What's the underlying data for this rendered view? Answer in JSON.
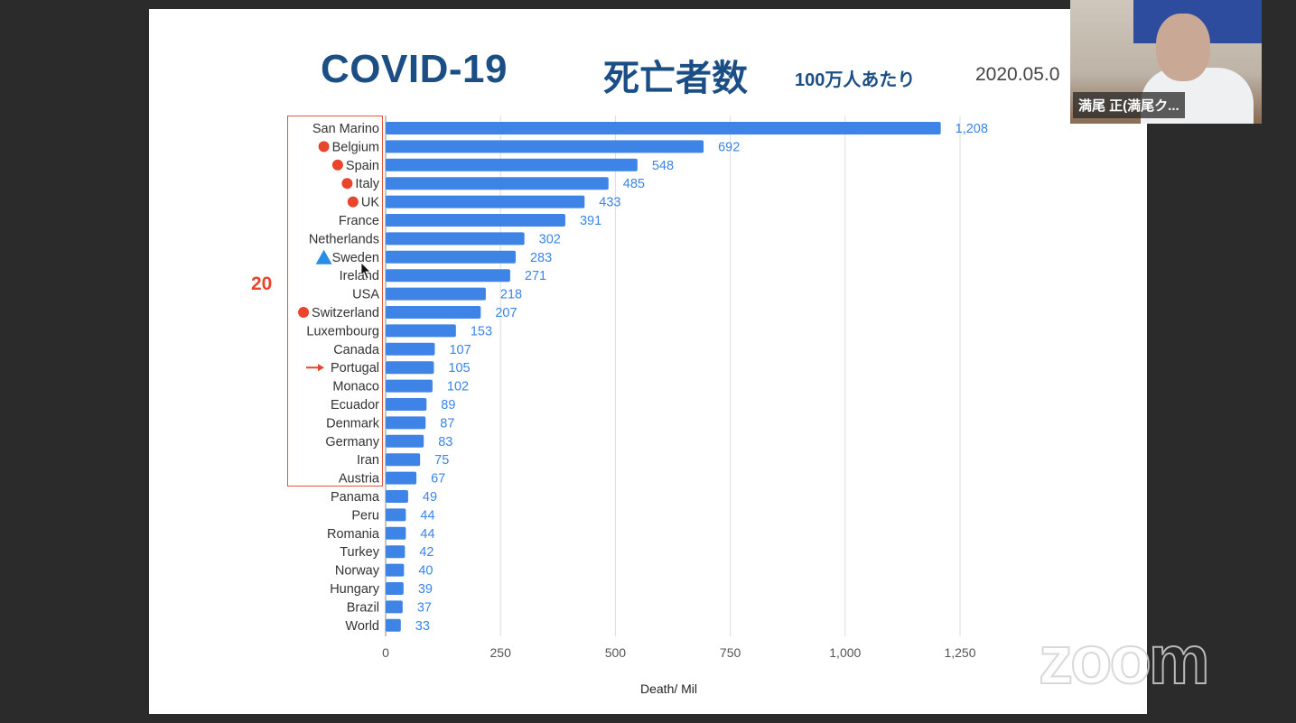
{
  "slide": {
    "title": "COVID-19",
    "title_jp": "死亡者数",
    "subtitle": "100万人あたり",
    "date": "2020.05.0",
    "highlight_count": "20"
  },
  "colors": {
    "bar": "#3d84e6",
    "title": "#1a4e85",
    "highlight": "#e8452c",
    "marker_triangle": "#2b8ce6"
  },
  "chart_data": {
    "type": "bar",
    "orientation": "horizontal",
    "xlabel": "Death/ Mil",
    "xlim": [
      0,
      1250
    ],
    "xticks": [
      "0",
      "250",
      "500",
      "750",
      "1,000",
      "1,250"
    ],
    "xtick_values": [
      0,
      250,
      500,
      750,
      1000,
      1250
    ],
    "grid": true,
    "categories": [
      "San Marino",
      "Belgium",
      "Spain",
      "Italy",
      "UK",
      "France",
      "Netherlands",
      "Sweden",
      "Ireland",
      "USA",
      "Switzerland",
      "Luxembourg",
      "Canada",
      "Portugal",
      "Monaco",
      "Ecuador",
      "Denmark",
      "Germany",
      "Iran",
      "Austria",
      "Panama",
      "Peru",
      "Romania",
      "Turkey",
      "Norway",
      "Hungary",
      "Brazil",
      "World"
    ],
    "values": [
      1208,
      692,
      548,
      485,
      433,
      391,
      302,
      283,
      271,
      218,
      207,
      153,
      107,
      105,
      102,
      89,
      87,
      83,
      75,
      67,
      49,
      44,
      44,
      42,
      40,
      39,
      37,
      33
    ],
    "value_labels": [
      "1,208",
      "692",
      "548",
      "485",
      "433",
      "391",
      "302",
      "283",
      "271",
      "218",
      "207",
      "153",
      "107",
      "105",
      "102",
      "89",
      "87",
      "83",
      "75",
      "67",
      "49",
      "44",
      "44",
      "42",
      "40",
      "39",
      "37",
      "33"
    ],
    "markers": {
      "Belgium": "red-dot",
      "Spain": "red-dot",
      "Italy": "red-dot",
      "UK": "red-dot",
      "Switzerland": "red-dot",
      "Sweden": "blue-triangle",
      "Portugal": "red-arrow"
    }
  },
  "video": {
    "participant_name": "満尾 正(満尾ク..."
  },
  "watermark": "zoom"
}
